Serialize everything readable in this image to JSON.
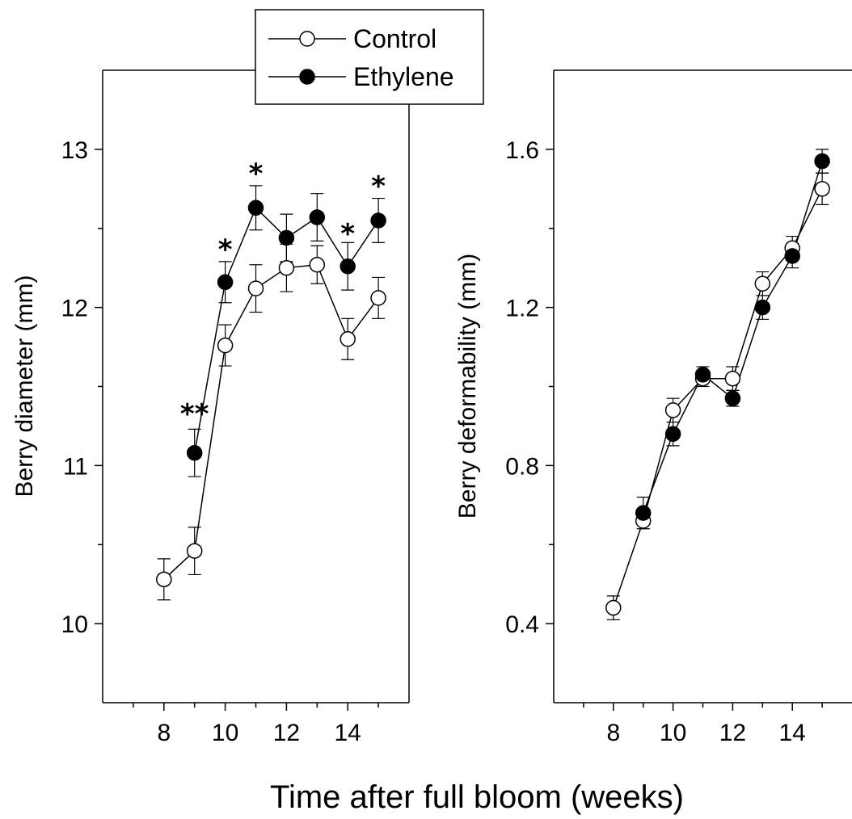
{
  "figure": {
    "xlabel": "Time after full bloom (weeks)"
  },
  "legend": {
    "entries": [
      {
        "label": "Control",
        "marker": "open-circle"
      },
      {
        "label": "Ethylene",
        "marker": "filled-circle"
      }
    ]
  },
  "chart_data": [
    {
      "type": "line",
      "ylabel": "Berry diameter (mm)",
      "xlabel": "Time after full bloom (weeks)",
      "xlim": [
        6,
        16
      ],
      "ylim": [
        9.5,
        13.5
      ],
      "xticks": [
        8,
        10,
        12,
        14
      ],
      "yticks": [
        10,
        11,
        12,
        13
      ],
      "x": [
        8,
        9,
        10,
        11,
        12,
        13,
        14,
        15
      ],
      "series": [
        {
          "name": "Control",
          "marker": "open-circle",
          "values": [
            10.28,
            10.46,
            11.76,
            12.12,
            12.25,
            12.27,
            11.8,
            12.06
          ],
          "errors": [
            0.13,
            0.15,
            0.13,
            0.15,
            0.15,
            0.12,
            0.13,
            0.13
          ]
        },
        {
          "name": "Ethylene",
          "marker": "filled-circle",
          "x": [
            9,
            10,
            11,
            12,
            13,
            14,
            15
          ],
          "values": [
            11.08,
            12.16,
            12.63,
            12.44,
            12.57,
            12.26,
            12.55
          ],
          "errors": [
            0.15,
            0.13,
            0.14,
            0.15,
            0.15,
            0.15,
            0.14
          ]
        }
      ],
      "annotations": [
        {
          "x": 9,
          "text": "**",
          "y": 11.38
        },
        {
          "x": 10,
          "text": "*",
          "y": 12.42
        },
        {
          "x": 11,
          "text": "*",
          "y": 12.9
        },
        {
          "x": 14,
          "text": "*",
          "y": 12.52
        },
        {
          "x": 15,
          "text": "*",
          "y": 12.82
        }
      ],
      "grid": false
    },
    {
      "type": "line",
      "ylabel": "Berry deformability (mm)",
      "xlabel": "Time after full bloom (weeks)",
      "xlim": [
        6,
        16
      ],
      "ylim": [
        0.2,
        1.8
      ],
      "xticks": [
        8,
        10,
        12,
        14
      ],
      "yticks": [
        "0.4",
        "0.8",
        "1.2",
        "1.6"
      ],
      "x": [
        8,
        9,
        10,
        11,
        12,
        13,
        14,
        15
      ],
      "series": [
        {
          "name": "Control",
          "marker": "open-circle",
          "values": [
            0.44,
            0.66,
            0.94,
            1.02,
            1.02,
            1.26,
            1.35,
            1.5
          ],
          "errors": [
            0.03,
            0.02,
            0.03,
            0.02,
            0.03,
            0.03,
            0.03,
            0.04
          ]
        },
        {
          "name": "Ethylene",
          "marker": "filled-circle",
          "x": [
            9,
            10,
            11,
            12,
            13,
            14,
            15
          ],
          "values": [
            0.68,
            0.88,
            1.03,
            0.97,
            1.2,
            1.33,
            1.57
          ],
          "errors": [
            0.04,
            0.03,
            0.02,
            0.02,
            0.03,
            0.03,
            0.03
          ]
        }
      ],
      "grid": false
    }
  ]
}
